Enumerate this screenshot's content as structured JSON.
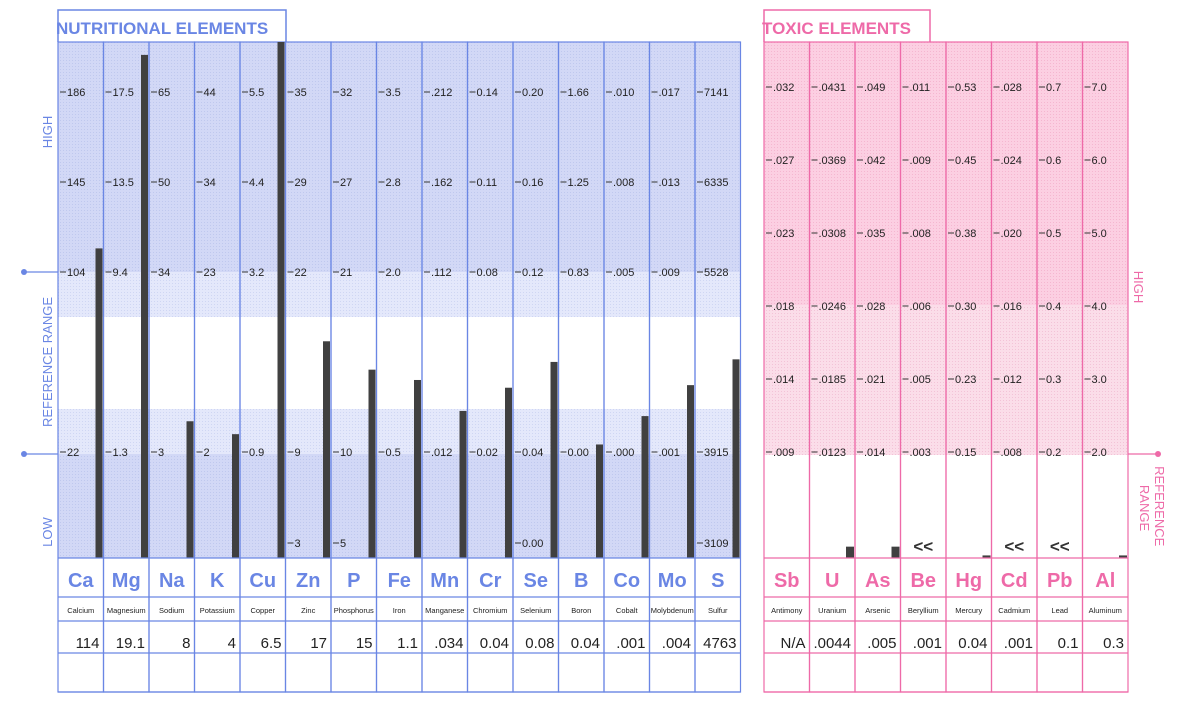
{
  "nutritional": {
    "title": "NUTRITIONAL  ELEMENTS",
    "side_labels": {
      "high": "HIGH",
      "reference_range": "REFERENCE  RANGE",
      "low": "LOW"
    },
    "colors": {
      "outline": "#6a86e4",
      "high_low_band": "#d2d8f6",
      "stipple": "#bfc8ee",
      "bar": "#404040",
      "label": "#6a86e4"
    }
  },
  "toxic": {
    "title": "TOXIC  ELEMENTS",
    "side_labels": {
      "high": "HIGH",
      "reference_range": "REFERENCE\nRANGE"
    },
    "colors": {
      "outline": "#ee6aa8",
      "high_band": "#fccfe2",
      "stipple": "#f5b6d0",
      "bar": "#404040",
      "label": "#ee6aa8"
    }
  },
  "chart_data": [
    {
      "type": "bar",
      "title": "NUTRITIONAL  ELEMENTS",
      "scale_rows": [
        "high",
        "upper",
        "ref_high",
        "ref_low",
        "low"
      ],
      "columns": [
        {
          "symbol": "Ca",
          "name": "Calcium",
          "result": "114",
          "ticks": [
            "186",
            "145",
            "104",
            "22"
          ],
          "level": 0.6
        },
        {
          "symbol": "Mg",
          "name": "Magnesium",
          "result": "19.1",
          "ticks": [
            "17.5",
            "13.5",
            "9.4",
            "1.3"
          ],
          "level": 0.975
        },
        {
          "symbol": "Na",
          "name": "Sodium",
          "result": "8",
          "ticks": [
            "65",
            "50",
            "34",
            "3"
          ],
          "level": 0.265
        },
        {
          "symbol": "K",
          "name": "Potassium",
          "result": "4",
          "ticks": [
            "44",
            "34",
            "23",
            "2"
          ],
          "level": 0.24
        },
        {
          "symbol": "Cu",
          "name": "Copper",
          "result": "6.5",
          "ticks": [
            "5.5",
            "4.4",
            "3.2",
            "0.9"
          ],
          "level": 1.0
        },
        {
          "symbol": "Zn",
          "name": "Zinc",
          "result": "17",
          "ticks": [
            "35",
            "29",
            "22",
            "9",
            "3"
          ],
          "level": 0.42
        },
        {
          "symbol": "P",
          "name": "Phosphorus",
          "result": "15",
          "ticks": [
            "32",
            "27",
            "21",
            "10",
            "5"
          ],
          "level": 0.365
        },
        {
          "symbol": "Fe",
          "name": "Iron",
          "result": "1.1",
          "ticks": [
            "3.5",
            "2.8",
            "2.0",
            "0.5"
          ],
          "level": 0.345
        },
        {
          "symbol": "Mn",
          "name": "Manganese",
          "result": ".034",
          "ticks": [
            ".212",
            ".162",
            ".112",
            ".012"
          ],
          "level": 0.285
        },
        {
          "symbol": "Cr",
          "name": "Chromium",
          "result": "0.04",
          "ticks": [
            "0.14",
            "0.11",
            "0.08",
            "0.02"
          ],
          "level": 0.33
        },
        {
          "symbol": "Se",
          "name": "Selenium",
          "result": "0.08",
          "ticks": [
            "0.20",
            "0.16",
            "0.12",
            "0.04",
            "0.00"
          ],
          "level": 0.38
        },
        {
          "symbol": "B",
          "name": "Boron",
          "result": "0.04",
          "ticks": [
            "1.66",
            "1.25",
            "0.83",
            "0.00"
          ],
          "level": 0.22
        },
        {
          "symbol": "Co",
          "name": "Cobalt",
          "result": ".001",
          "ticks": [
            ".010",
            ".008",
            ".005",
            ".000"
          ],
          "level": 0.275
        },
        {
          "symbol": "Mo",
          "name": "Molybdenum",
          "result": ".004",
          "ticks": [
            ".017",
            ".013",
            ".009",
            ".001"
          ],
          "level": 0.335
        },
        {
          "symbol": "S",
          "name": "Sulfur",
          "result": "4763",
          "ticks": [
            "7141",
            "6335",
            "5528",
            "3915",
            "3109"
          ],
          "level": 0.385
        }
      ]
    },
    {
      "type": "bar",
      "title": "TOXIC  ELEMENTS",
      "columns": [
        {
          "symbol": "Sb",
          "name": "Antimony",
          "result": "N/A",
          "ticks": [
            ".032",
            ".027",
            ".023",
            ".018",
            ".014",
            ".009"
          ],
          "level": 0.0,
          "marker": ""
        },
        {
          "symbol": "U",
          "name": "Uranium",
          "result": ".0044",
          "ticks": [
            ".0431",
            ".0369",
            ".0308",
            ".0246",
            ".0185",
            ".0123"
          ],
          "level": 0.022,
          "marker": ""
        },
        {
          "symbol": "As",
          "name": "Arsenic",
          "result": ".005",
          "ticks": [
            ".049",
            ".042",
            ".035",
            ".028",
            ".021",
            ".014"
          ],
          "level": 0.022,
          "marker": ""
        },
        {
          "symbol": "Be",
          "name": "Beryllium",
          "result": ".001",
          "ticks": [
            ".011",
            ".009",
            ".008",
            ".006",
            ".005",
            ".003"
          ],
          "level": 0.0,
          "marker": "<<"
        },
        {
          "symbol": "Hg",
          "name": "Mercury",
          "result": "0.04",
          "ticks": [
            "0.53",
            "0.45",
            "0.38",
            "0.30",
            "0.23",
            "0.15"
          ],
          "level": 0.005,
          "marker": ""
        },
        {
          "symbol": "Cd",
          "name": "Cadmium",
          "result": ".001",
          "ticks": [
            ".028",
            ".024",
            ".020",
            ".016",
            ".012",
            ".008"
          ],
          "level": 0.0,
          "marker": "<<"
        },
        {
          "symbol": "Pb",
          "name": "Lead",
          "result": "0.1",
          "ticks": [
            "0.7",
            "0.6",
            "0.5",
            "0.4",
            "0.3",
            "0.2"
          ],
          "level": 0.0,
          "marker": "<<"
        },
        {
          "symbol": "Al",
          "name": "Aluminum",
          "result": "0.3",
          "ticks": [
            "7.0",
            "6.0",
            "5.0",
            "4.0",
            "3.0",
            "2.0"
          ],
          "level": 0.005,
          "marker": ""
        }
      ]
    }
  ]
}
